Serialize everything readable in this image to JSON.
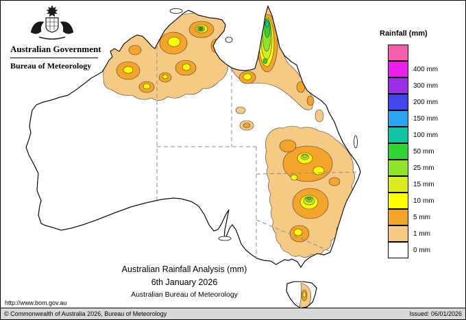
{
  "header": {
    "gov_title": "Australian Government",
    "bureau_title": "Bureau of Meteorology"
  },
  "legend": {
    "title": "Rainfall (mm)",
    "entries": [
      {
        "value": "400+",
        "label": "",
        "color": "#f65fae"
      },
      {
        "value": "400",
        "label": "400 mm",
        "color": "#ec1fec"
      },
      {
        "value": "300",
        "label": "300 mm",
        "color": "#9b30e8"
      },
      {
        "value": "200",
        "label": "200 mm",
        "color": "#4444e8"
      },
      {
        "value": "150",
        "label": "150 mm",
        "color": "#2aa4f0"
      },
      {
        "value": "100",
        "label": "100 mm",
        "color": "#12c5a2"
      },
      {
        "value": "50",
        "label": "50 mm",
        "color": "#30d430"
      },
      {
        "value": "25",
        "label": "25 mm",
        "color": "#8fe42c"
      },
      {
        "value": "15",
        "label": "15 mm",
        "color": "#d8ed21"
      },
      {
        "value": "10",
        "label": "10 mm",
        "color": "#ffff00"
      },
      {
        "value": "5",
        "label": "5 mm",
        "color": "#f5a42a"
      },
      {
        "value": "1",
        "label": "1 mm",
        "color": "#f6ca84"
      },
      {
        "value": "0",
        "label": "0 mm",
        "color": "#ffffff"
      }
    ]
  },
  "map": {
    "title": "Australian Rainfall Analysis (mm)",
    "date": "6th January 2026",
    "organisation": "Australian Bureau of Meteorology",
    "url": "http://www.bom.gov.au"
  },
  "footer": {
    "copyright": "© Commonwealth of Australia 2026, Bureau of Meteorology",
    "issued": "Issued: 06/01/2026"
  }
}
